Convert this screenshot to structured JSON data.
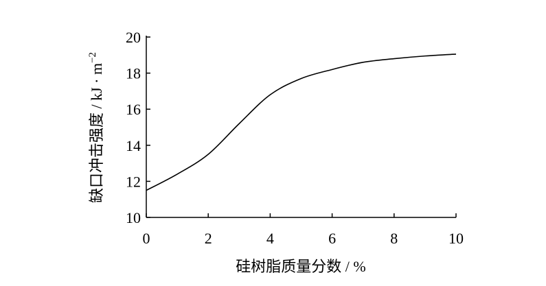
{
  "chart_data": {
    "type": "line",
    "xlabel": "硅树脂质量分数 / %",
    "ylabel": [
      "缺口冲击强度 / kJ · m",
      "−2"
    ],
    "x": [
      0,
      1,
      2,
      3,
      4,
      5,
      6,
      7,
      8,
      9,
      10
    ],
    "series": [
      {
        "color": "#000000",
        "values": [
          11.5,
          12.4,
          13.5,
          15.2,
          16.8,
          17.7,
          18.2,
          18.6,
          18.8,
          18.95,
          19.05
        ]
      }
    ],
    "xlim": [
      0,
      10
    ],
    "xticks": [
      0,
      2,
      4,
      6,
      8,
      10
    ],
    "ylim": [
      10,
      20
    ],
    "yticks": [
      10,
      12,
      14,
      16,
      18,
      20
    ]
  }
}
